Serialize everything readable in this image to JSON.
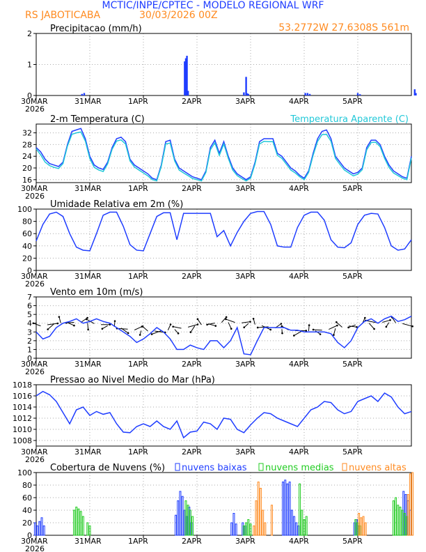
{
  "header": {
    "title": "MCTIC/INPE/CPTEC - MODELO REGIONAL WRF",
    "location": "RS JABOTICABA",
    "run": "30/03/2026 00Z",
    "coords": "53.2772W 27.6308S 561m"
  },
  "colors": {
    "title": "#1f3dff",
    "orange": "#ff8a1f",
    "blue": "#1f3dff",
    "cyan": "#22c8d8",
    "green": "#22cc22",
    "black": "#000000",
    "grid": "#aaaaaa"
  },
  "time_axis": {
    "labels": [
      "30MAR",
      "31MAR",
      "1APR",
      "2APR",
      "3APR",
      "4APR",
      "5APR"
    ],
    "year": "2026"
  },
  "chart_data": [
    {
      "type": "bar",
      "id": "precip",
      "title": "Precipitacao (mm/h)",
      "ylim": [
        0,
        2
      ],
      "yticks": [
        0,
        1,
        2
      ],
      "x_unit": "hours since 30MAR 00Z",
      "x": [
        20.5,
        21.5,
        66.5,
        67,
        67.5,
        68,
        93,
        94,
        94.5,
        95,
        120.5,
        121.5,
        122.5,
        144,
        145,
        169.5,
        170
      ],
      "values": [
        0.05,
        0.08,
        1.1,
        1.2,
        1.28,
        0.15,
        0.1,
        0.6,
        0.07,
        0.05,
        0.08,
        0.08,
        0.05,
        0.08,
        0.04,
        0.2,
        0.08
      ]
    },
    {
      "type": "line",
      "id": "temp",
      "title": "2-m Temperatura (C)",
      "legend": "Temperatura Aparente (C)",
      "ylim": [
        15,
        35
      ],
      "yticks": [
        16,
        20,
        24,
        28,
        32
      ],
      "series": [
        {
          "name": "Temperatura",
          "color": "blue",
          "x": [
            0,
            2,
            4,
            6,
            8,
            10,
            12,
            14,
            16,
            18,
            20,
            22,
            24,
            26,
            28,
            30,
            32,
            34,
            36,
            38,
            40,
            42,
            44,
            46,
            48,
            50,
            52,
            54,
            56,
            58,
            60,
            62,
            64,
            66,
            68,
            70,
            72,
            74,
            76,
            78,
            80,
            82,
            84,
            86,
            88,
            90,
            92,
            94,
            96,
            98,
            100,
            102,
            104,
            106,
            108,
            110,
            112,
            114,
            116,
            118,
            120,
            122,
            124,
            126,
            128,
            130,
            132,
            134,
            136,
            138,
            140,
            142,
            144,
            146,
            148,
            150,
            152,
            154,
            156,
            158,
            160,
            162,
            164,
            166,
            168
          ],
          "values": [
            27,
            25.5,
            23,
            21.5,
            21,
            20.5,
            22,
            28,
            32.5,
            33,
            33.5,
            30,
            24,
            21,
            20,
            19.5,
            22,
            27,
            30,
            30.5,
            29,
            23,
            21,
            20,
            19,
            18,
            16.5,
            16,
            21,
            29,
            29.5,
            23,
            20,
            19,
            18,
            17,
            16.5,
            16,
            19,
            27,
            29.5,
            25,
            29,
            24,
            20,
            18,
            17,
            16,
            17,
            22,
            29,
            30,
            30,
            30,
            25,
            24,
            22,
            20,
            19,
            17.5,
            16.5,
            19,
            25,
            30,
            32.5,
            33,
            30,
            24,
            22,
            20,
            19,
            18,
            18.5,
            20,
            27,
            29.5,
            29.5,
            28,
            24,
            21,
            19,
            18,
            17,
            16.5,
            24
          ]
        },
        {
          "name": "Temperatura Aparente",
          "color": "cyan",
          "x": [
            0,
            2,
            4,
            6,
            8,
            10,
            12,
            14,
            16,
            18,
            20,
            22,
            24,
            26,
            28,
            30,
            32,
            34,
            36,
            38,
            40,
            42,
            44,
            46,
            48,
            50,
            52,
            54,
            56,
            58,
            60,
            62,
            64,
            66,
            68,
            70,
            72,
            74,
            76,
            78,
            80,
            82,
            84,
            86,
            88,
            90,
            92,
            94,
            96,
            98,
            100,
            102,
            104,
            106,
            108,
            110,
            112,
            114,
            116,
            118,
            120,
            122,
            124,
            126,
            128,
            130,
            132,
            134,
            136,
            138,
            140,
            142,
            144,
            146,
            148,
            150,
            152,
            154,
            156,
            158,
            160,
            162,
            164,
            166,
            168
          ],
          "values": [
            26.5,
            24.5,
            22,
            20.8,
            20.2,
            19.8,
            21.5,
            27.5,
            31.5,
            32,
            32.3,
            29.2,
            23.2,
            20.2,
            19.3,
            18.8,
            21.4,
            26.4,
            29.2,
            29.6,
            28.2,
            22.4,
            20.3,
            19.3,
            18.3,
            17.3,
            16,
            15.6,
            20.5,
            28.2,
            28.5,
            22.4,
            19.3,
            18.3,
            17.4,
            16.4,
            16,
            15.6,
            18.5,
            26.2,
            28.6,
            24.3,
            28.2,
            23.3,
            19.3,
            17.4,
            16.4,
            15.6,
            16.5,
            21.4,
            28.2,
            29.1,
            29,
            29,
            24.3,
            23.3,
            21.3,
            19.3,
            18.3,
            17,
            16,
            18.5,
            24.3,
            29.1,
            31.4,
            31.5,
            29.1,
            23.3,
            21.2,
            19.3,
            18.3,
            17.3,
            17.9,
            19.4,
            26.2,
            28.7,
            28.8,
            27.3,
            23.3,
            20.2,
            18.3,
            17.4,
            16.5,
            16,
            23.4
          ]
        }
      ]
    },
    {
      "type": "line",
      "id": "humidity",
      "title": "Umidade Relativa em 2m (%)",
      "ylim": [
        0,
        100
      ],
      "yticks": [
        0,
        20,
        40,
        60,
        80,
        100
      ],
      "series": [
        {
          "name": "Umidade",
          "color": "blue",
          "x": [
            0,
            3,
            6,
            9,
            12,
            15,
            18,
            21,
            24,
            27,
            30,
            33,
            36,
            39,
            42,
            45,
            48,
            51,
            54,
            57,
            60,
            63,
            66,
            69,
            72,
            75,
            78,
            81,
            84,
            87,
            90,
            93,
            96,
            99,
            102,
            105,
            108,
            111,
            114,
            117,
            120,
            123,
            126,
            129,
            132,
            135,
            138,
            141,
            144,
            147,
            150,
            153,
            156,
            159,
            162,
            165,
            168
          ],
          "values": [
            48,
            75,
            92,
            95,
            88,
            60,
            38,
            33,
            32,
            60,
            90,
            95,
            95,
            72,
            42,
            33,
            32,
            60,
            88,
            94,
            94,
            50,
            93,
            93,
            93,
            93,
            93,
            55,
            65,
            40,
            62,
            80,
            93,
            96,
            96,
            75,
            40,
            38,
            38,
            70,
            90,
            95,
            95,
            82,
            50,
            38,
            37,
            45,
            75,
            90,
            93,
            92,
            70,
            40,
            33,
            35,
            50
          ]
        }
      ]
    },
    {
      "type": "line",
      "id": "wind",
      "title": "Vento em 10m (m/s)",
      "ylim": [
        0,
        7
      ],
      "yticks": [
        0,
        1,
        2,
        3,
        4,
        5,
        6,
        7
      ],
      "barbs": "wind direction arrows",
      "series": [
        {
          "name": "Vento",
          "color": "blue",
          "x": [
            0,
            3,
            6,
            9,
            12,
            15,
            18,
            21,
            24,
            27,
            30,
            33,
            36,
            39,
            42,
            45,
            48,
            51,
            54,
            57,
            60,
            63,
            66,
            69,
            72,
            75,
            78,
            81,
            84,
            87,
            90,
            93,
            96,
            99,
            102,
            105,
            108,
            111,
            114,
            117,
            120,
            123,
            126,
            129,
            132,
            135,
            138,
            141,
            144,
            147,
            150,
            153,
            156,
            159,
            162,
            165,
            168
          ],
          "values": [
            3,
            2.2,
            2.5,
            3.5,
            4,
            4.2,
            4.5,
            4,
            4.2,
            4.5,
            4.2,
            4,
            3.5,
            3,
            2.5,
            1.8,
            2.2,
            2.8,
            3.5,
            3,
            2.2,
            1,
            1,
            1.5,
            1.2,
            1,
            2,
            2,
            1.2,
            2,
            3.5,
            0.5,
            0.4,
            2,
            3.5,
            3.5,
            3.5,
            3.5,
            3.2,
            3.2,
            3,
            3,
            3,
            3,
            2.8,
            1.8,
            1.2,
            2,
            3.5,
            4.2,
            4.5,
            4,
            4.5,
            4.8,
            4.2,
            4.4,
            4.8
          ]
        }
      ]
    },
    {
      "type": "line",
      "id": "pressure",
      "title": "Pressao ao Nivel Medio do Mar (hPa)",
      "ylim": [
        1007,
        1018
      ],
      "yticks": [
        1008,
        1010,
        1012,
        1014,
        1016,
        1018
      ],
      "series": [
        {
          "name": "Pressao",
          "color": "blue",
          "x": [
            0,
            3,
            6,
            9,
            12,
            15,
            18,
            21,
            24,
            27,
            30,
            33,
            36,
            39,
            42,
            45,
            48,
            51,
            54,
            57,
            60,
            63,
            66,
            69,
            72,
            75,
            78,
            81,
            84,
            87,
            90,
            93,
            96,
            99,
            102,
            105,
            108,
            111,
            114,
            117,
            120,
            123,
            126,
            129,
            132,
            135,
            138,
            141,
            144,
            147,
            150,
            153,
            156,
            159,
            162,
            165,
            168
          ],
          "values": [
            1016,
            1016.8,
            1016.2,
            1015,
            1013,
            1011,
            1013.5,
            1014,
            1012.5,
            1013.2,
            1012.7,
            1013,
            1011,
            1009.5,
            1009.4,
            1010.5,
            1011,
            1010.5,
            1011.5,
            1010.5,
            1010,
            1011.5,
            1008.5,
            1009.5,
            1009.7,
            1011.3,
            1011,
            1010,
            1012,
            1011.8,
            1010,
            1009.4,
            1010.8,
            1012,
            1013,
            1012.8,
            1012,
            1011.5,
            1011,
            1010.5,
            1012,
            1013.5,
            1014,
            1015,
            1014.8,
            1013.5,
            1012.8,
            1013.2,
            1015,
            1015.5,
            1016,
            1015,
            1016.5,
            1015.8,
            1014,
            1012.8,
            1013.2
          ]
        }
      ]
    },
    {
      "type": "bar",
      "id": "clouds",
      "title": "Cobertura de Nuvens (%)",
      "legend": [
        "nuvens baixas",
        "nuvens medias",
        "nuvens altas"
      ],
      "ylim": [
        0,
        100
      ],
      "yticks": [
        0,
        20,
        40,
        60,
        80,
        100
      ],
      "series": [
        {
          "name": "nuvens baixas",
          "color": "blue",
          "x": [
            0,
            1,
            2,
            3,
            4,
            63,
            64,
            65,
            66,
            67,
            68,
            69,
            70,
            88,
            89,
            90,
            93,
            94,
            111,
            112,
            113,
            114,
            115,
            116,
            117,
            118,
            143,
            144,
            145,
            165,
            166,
            167,
            168
          ],
          "values": [
            20,
            15,
            22,
            28,
            15,
            32,
            55,
            70,
            62,
            40,
            30,
            45,
            20,
            20,
            35,
            18,
            20,
            15,
            85,
            88,
            82,
            85,
            40,
            30,
            20,
            15,
            20,
            25,
            15,
            70,
            65,
            55,
            40
          ]
        },
        {
          "name": "nuvens medias",
          "color": "green",
          "x": [
            17,
            18,
            19,
            20,
            21,
            23,
            24,
            67,
            68,
            69,
            70,
            93,
            94,
            95,
            96,
            118,
            119,
            120,
            121,
            143,
            144,
            145,
            160,
            161,
            162,
            163,
            164,
            165,
            166
          ],
          "values": [
            40,
            45,
            42,
            38,
            30,
            20,
            15,
            55,
            48,
            40,
            30,
            15,
            20,
            25,
            18,
            82,
            40,
            25,
            30,
            25,
            20,
            15,
            55,
            60,
            48,
            45,
            40,
            35,
            30
          ]
        },
        {
          "name": "nuvens altas",
          "color": "orange",
          "x": [
            97,
            98,
            99,
            100,
            101,
            102,
            105,
            144,
            145,
            146,
            147,
            166,
            167,
            168
          ],
          "values": [
            15,
            55,
            85,
            75,
            40,
            20,
            48,
            35,
            28,
            30,
            20,
            65,
            98,
            100
          ]
        }
      ]
    }
  ]
}
